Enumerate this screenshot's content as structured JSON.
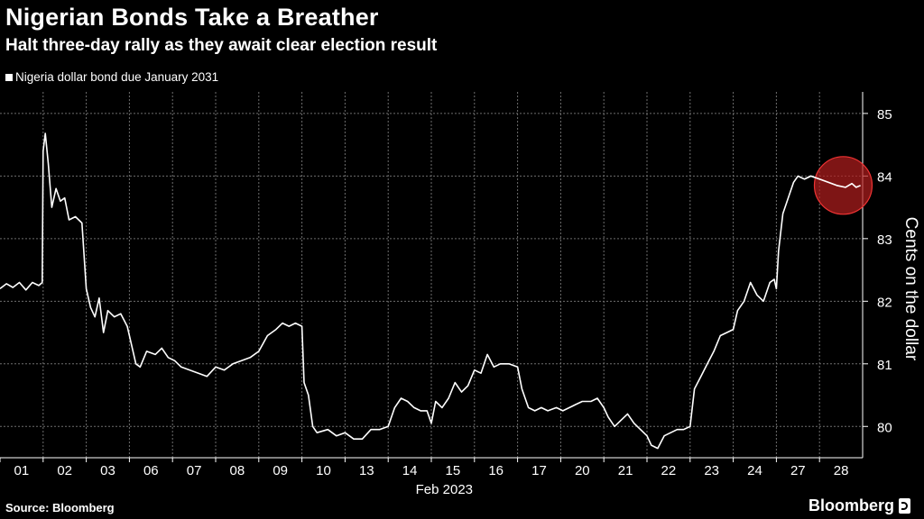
{
  "header": {
    "title": "Nigerian Bonds Take a Breather",
    "subtitle": "Halt three-day rally as they await clear election result"
  },
  "legend": {
    "label": "Nigeria dollar bond due January 2031"
  },
  "footer": {
    "source": "Source: Bloomberg",
    "brand": "Bloomberg"
  },
  "colors": {
    "background": "#000000",
    "line": "#ffffff",
    "grid": "#6e6e6e",
    "highlight": "#b41e1e"
  },
  "chart_data": {
    "type": "line",
    "title": "Nigerian Bonds Take a Breather",
    "subtitle": "Halt three-day rally as they await clear election result",
    "ylabel": "Cents on the dollar",
    "xlabel": "Feb 2023",
    "ylim": [
      79.5,
      85.2
    ],
    "yticks": [
      80,
      81,
      82,
      83,
      84,
      85
    ],
    "y_axis_side": "right",
    "x_categories": [
      "01",
      "02",
      "03",
      "06",
      "07",
      "08",
      "09",
      "10",
      "13",
      "14",
      "15",
      "16",
      "17",
      "20",
      "21",
      "22",
      "23",
      "24",
      "27",
      "28"
    ],
    "x_range": [
      0,
      20
    ],
    "grid": "dashed",
    "legend_position": "top-left",
    "series": [
      {
        "name": "Nigeria dollar bond due January 2031",
        "points": [
          [
            0.0,
            82.2
          ],
          [
            0.15,
            82.28
          ],
          [
            0.3,
            82.22
          ],
          [
            0.45,
            82.3
          ],
          [
            0.6,
            82.18
          ],
          [
            0.75,
            82.3
          ],
          [
            0.9,
            82.25
          ],
          [
            0.98,
            82.3
          ],
          [
            1.0,
            84.4
          ],
          [
            1.05,
            84.68
          ],
          [
            1.12,
            84.2
          ],
          [
            1.2,
            83.5
          ],
          [
            1.3,
            83.8
          ],
          [
            1.4,
            83.6
          ],
          [
            1.5,
            83.65
          ],
          [
            1.6,
            83.3
          ],
          [
            1.75,
            83.35
          ],
          [
            1.9,
            83.25
          ],
          [
            2.0,
            82.2
          ],
          [
            2.1,
            81.9
          ],
          [
            2.2,
            81.75
          ],
          [
            2.3,
            82.05
          ],
          [
            2.4,
            81.5
          ],
          [
            2.5,
            81.85
          ],
          [
            2.65,
            81.75
          ],
          [
            2.8,
            81.8
          ],
          [
            2.95,
            81.6
          ],
          [
            3.05,
            81.3
          ],
          [
            3.15,
            81.0
          ],
          [
            3.25,
            80.95
          ],
          [
            3.4,
            81.2
          ],
          [
            3.6,
            81.15
          ],
          [
            3.75,
            81.25
          ],
          [
            3.9,
            81.1
          ],
          [
            4.05,
            81.05
          ],
          [
            4.2,
            80.95
          ],
          [
            4.4,
            80.9
          ],
          [
            4.6,
            80.85
          ],
          [
            4.8,
            80.8
          ],
          [
            5.0,
            80.95
          ],
          [
            5.2,
            80.9
          ],
          [
            5.4,
            81.0
          ],
          [
            5.6,
            81.05
          ],
          [
            5.8,
            81.1
          ],
          [
            6.0,
            81.2
          ],
          [
            6.2,
            81.45
          ],
          [
            6.4,
            81.55
          ],
          [
            6.55,
            81.65
          ],
          [
            6.7,
            81.6
          ],
          [
            6.85,
            81.65
          ],
          [
            7.0,
            81.6
          ],
          [
            7.05,
            80.7
          ],
          [
            7.15,
            80.5
          ],
          [
            7.25,
            80.0
          ],
          [
            7.35,
            79.9
          ],
          [
            7.6,
            79.95
          ],
          [
            7.8,
            79.85
          ],
          [
            8.0,
            79.9
          ],
          [
            8.2,
            79.8
          ],
          [
            8.4,
            79.8
          ],
          [
            8.6,
            79.95
          ],
          [
            8.8,
            79.95
          ],
          [
            9.0,
            80.0
          ],
          [
            9.15,
            80.3
          ],
          [
            9.3,
            80.45
          ],
          [
            9.45,
            80.4
          ],
          [
            9.6,
            80.3
          ],
          [
            9.75,
            80.25
          ],
          [
            9.9,
            80.25
          ],
          [
            10.0,
            80.05
          ],
          [
            10.1,
            80.4
          ],
          [
            10.25,
            80.3
          ],
          [
            10.4,
            80.45
          ],
          [
            10.55,
            80.7
          ],
          [
            10.7,
            80.55
          ],
          [
            10.85,
            80.65
          ],
          [
            11.0,
            80.9
          ],
          [
            11.15,
            80.85
          ],
          [
            11.3,
            81.15
          ],
          [
            11.45,
            80.95
          ],
          [
            11.6,
            81.0
          ],
          [
            11.8,
            81.0
          ],
          [
            12.0,
            80.95
          ],
          [
            12.1,
            80.6
          ],
          [
            12.25,
            80.3
          ],
          [
            12.4,
            80.25
          ],
          [
            12.55,
            80.3
          ],
          [
            12.7,
            80.25
          ],
          [
            12.9,
            80.3
          ],
          [
            13.05,
            80.25
          ],
          [
            13.2,
            80.3
          ],
          [
            13.35,
            80.35
          ],
          [
            13.5,
            80.4
          ],
          [
            13.7,
            80.4
          ],
          [
            13.85,
            80.45
          ],
          [
            14.0,
            80.3
          ],
          [
            14.1,
            80.15
          ],
          [
            14.25,
            80.0
          ],
          [
            14.4,
            80.1
          ],
          [
            14.55,
            80.2
          ],
          [
            14.7,
            80.05
          ],
          [
            14.85,
            79.95
          ],
          [
            15.0,
            79.85
          ],
          [
            15.1,
            79.7
          ],
          [
            15.25,
            79.65
          ],
          [
            15.4,
            79.85
          ],
          [
            15.55,
            79.9
          ],
          [
            15.7,
            79.95
          ],
          [
            15.85,
            79.95
          ],
          [
            16.0,
            80.0
          ],
          [
            16.1,
            80.6
          ],
          [
            16.25,
            80.8
          ],
          [
            16.4,
            81.0
          ],
          [
            16.55,
            81.2
          ],
          [
            16.7,
            81.45
          ],
          [
            16.85,
            81.5
          ],
          [
            17.0,
            81.55
          ],
          [
            17.1,
            81.85
          ],
          [
            17.25,
            82.0
          ],
          [
            17.4,
            82.3
          ],
          [
            17.55,
            82.1
          ],
          [
            17.7,
            82.0
          ],
          [
            17.85,
            82.3
          ],
          [
            17.95,
            82.35
          ],
          [
            18.0,
            82.2
          ],
          [
            18.05,
            82.8
          ],
          [
            18.15,
            83.4
          ],
          [
            18.3,
            83.7
          ],
          [
            18.4,
            83.9
          ],
          [
            18.5,
            84.0
          ],
          [
            18.65,
            83.95
          ],
          [
            18.8,
            84.0
          ],
          [
            19.0,
            83.95
          ],
          [
            19.2,
            83.9
          ],
          [
            19.4,
            83.85
          ],
          [
            19.6,
            83.82
          ],
          [
            19.75,
            83.88
          ],
          [
            19.85,
            83.82
          ],
          [
            19.95,
            83.85
          ]
        ]
      }
    ],
    "annotations": [
      {
        "type": "circle-highlight",
        "x": 19.55,
        "y": 83.85,
        "color": "#b41e1e"
      }
    ]
  }
}
